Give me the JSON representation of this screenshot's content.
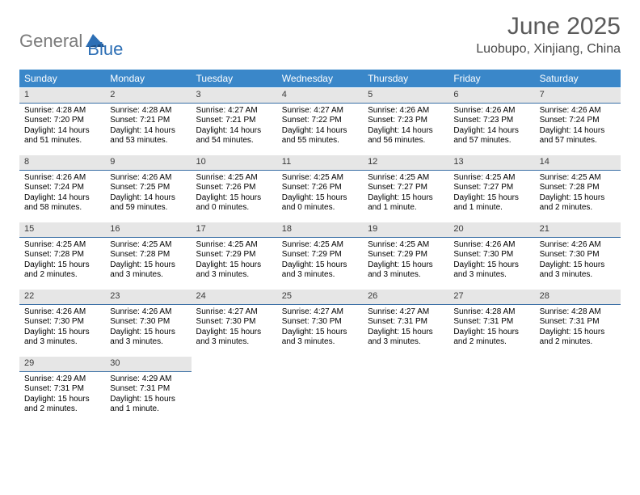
{
  "brand": {
    "text1": "General",
    "text2": "Blue",
    "color_gray": "#7a7a7a",
    "color_blue": "#2d6fb5"
  },
  "title": "June 2025",
  "location": "Luobupo, Xinjiang, China",
  "weekdays": [
    "Sunday",
    "Monday",
    "Tuesday",
    "Wednesday",
    "Thursday",
    "Friday",
    "Saturday"
  ],
  "header_bg": "#3a87c9",
  "daynum_bg": "#e6e6e6",
  "daynum_border": "#3a6fa5",
  "days": [
    {
      "n": "1",
      "sr": "Sunrise: 4:28 AM",
      "ss": "Sunset: 7:20 PM",
      "d1": "Daylight: 14 hours",
      "d2": "and 51 minutes."
    },
    {
      "n": "2",
      "sr": "Sunrise: 4:28 AM",
      "ss": "Sunset: 7:21 PM",
      "d1": "Daylight: 14 hours",
      "d2": "and 53 minutes."
    },
    {
      "n": "3",
      "sr": "Sunrise: 4:27 AM",
      "ss": "Sunset: 7:21 PM",
      "d1": "Daylight: 14 hours",
      "d2": "and 54 minutes."
    },
    {
      "n": "4",
      "sr": "Sunrise: 4:27 AM",
      "ss": "Sunset: 7:22 PM",
      "d1": "Daylight: 14 hours",
      "d2": "and 55 minutes."
    },
    {
      "n": "5",
      "sr": "Sunrise: 4:26 AM",
      "ss": "Sunset: 7:23 PM",
      "d1": "Daylight: 14 hours",
      "d2": "and 56 minutes."
    },
    {
      "n": "6",
      "sr": "Sunrise: 4:26 AM",
      "ss": "Sunset: 7:23 PM",
      "d1": "Daylight: 14 hours",
      "d2": "and 57 minutes."
    },
    {
      "n": "7",
      "sr": "Sunrise: 4:26 AM",
      "ss": "Sunset: 7:24 PM",
      "d1": "Daylight: 14 hours",
      "d2": "and 57 minutes."
    },
    {
      "n": "8",
      "sr": "Sunrise: 4:26 AM",
      "ss": "Sunset: 7:24 PM",
      "d1": "Daylight: 14 hours",
      "d2": "and 58 minutes."
    },
    {
      "n": "9",
      "sr": "Sunrise: 4:26 AM",
      "ss": "Sunset: 7:25 PM",
      "d1": "Daylight: 14 hours",
      "d2": "and 59 minutes."
    },
    {
      "n": "10",
      "sr": "Sunrise: 4:25 AM",
      "ss": "Sunset: 7:26 PM",
      "d1": "Daylight: 15 hours",
      "d2": "and 0 minutes."
    },
    {
      "n": "11",
      "sr": "Sunrise: 4:25 AM",
      "ss": "Sunset: 7:26 PM",
      "d1": "Daylight: 15 hours",
      "d2": "and 0 minutes."
    },
    {
      "n": "12",
      "sr": "Sunrise: 4:25 AM",
      "ss": "Sunset: 7:27 PM",
      "d1": "Daylight: 15 hours",
      "d2": "and 1 minute."
    },
    {
      "n": "13",
      "sr": "Sunrise: 4:25 AM",
      "ss": "Sunset: 7:27 PM",
      "d1": "Daylight: 15 hours",
      "d2": "and 1 minute."
    },
    {
      "n": "14",
      "sr": "Sunrise: 4:25 AM",
      "ss": "Sunset: 7:28 PM",
      "d1": "Daylight: 15 hours",
      "d2": "and 2 minutes."
    },
    {
      "n": "15",
      "sr": "Sunrise: 4:25 AM",
      "ss": "Sunset: 7:28 PM",
      "d1": "Daylight: 15 hours",
      "d2": "and 2 minutes."
    },
    {
      "n": "16",
      "sr": "Sunrise: 4:25 AM",
      "ss": "Sunset: 7:28 PM",
      "d1": "Daylight: 15 hours",
      "d2": "and 3 minutes."
    },
    {
      "n": "17",
      "sr": "Sunrise: 4:25 AM",
      "ss": "Sunset: 7:29 PM",
      "d1": "Daylight: 15 hours",
      "d2": "and 3 minutes."
    },
    {
      "n": "18",
      "sr": "Sunrise: 4:25 AM",
      "ss": "Sunset: 7:29 PM",
      "d1": "Daylight: 15 hours",
      "d2": "and 3 minutes."
    },
    {
      "n": "19",
      "sr": "Sunrise: 4:25 AM",
      "ss": "Sunset: 7:29 PM",
      "d1": "Daylight: 15 hours",
      "d2": "and 3 minutes."
    },
    {
      "n": "20",
      "sr": "Sunrise: 4:26 AM",
      "ss": "Sunset: 7:30 PM",
      "d1": "Daylight: 15 hours",
      "d2": "and 3 minutes."
    },
    {
      "n": "21",
      "sr": "Sunrise: 4:26 AM",
      "ss": "Sunset: 7:30 PM",
      "d1": "Daylight: 15 hours",
      "d2": "and 3 minutes."
    },
    {
      "n": "22",
      "sr": "Sunrise: 4:26 AM",
      "ss": "Sunset: 7:30 PM",
      "d1": "Daylight: 15 hours",
      "d2": "and 3 minutes."
    },
    {
      "n": "23",
      "sr": "Sunrise: 4:26 AM",
      "ss": "Sunset: 7:30 PM",
      "d1": "Daylight: 15 hours",
      "d2": "and 3 minutes."
    },
    {
      "n": "24",
      "sr": "Sunrise: 4:27 AM",
      "ss": "Sunset: 7:30 PM",
      "d1": "Daylight: 15 hours",
      "d2": "and 3 minutes."
    },
    {
      "n": "25",
      "sr": "Sunrise: 4:27 AM",
      "ss": "Sunset: 7:30 PM",
      "d1": "Daylight: 15 hours",
      "d2": "and 3 minutes."
    },
    {
      "n": "26",
      "sr": "Sunrise: 4:27 AM",
      "ss": "Sunset: 7:31 PM",
      "d1": "Daylight: 15 hours",
      "d2": "and 3 minutes."
    },
    {
      "n": "27",
      "sr": "Sunrise: 4:28 AM",
      "ss": "Sunset: 7:31 PM",
      "d1": "Daylight: 15 hours",
      "d2": "and 2 minutes."
    },
    {
      "n": "28",
      "sr": "Sunrise: 4:28 AM",
      "ss": "Sunset: 7:31 PM",
      "d1": "Daylight: 15 hours",
      "d2": "and 2 minutes."
    },
    {
      "n": "29",
      "sr": "Sunrise: 4:29 AM",
      "ss": "Sunset: 7:31 PM",
      "d1": "Daylight: 15 hours",
      "d2": "and 2 minutes."
    },
    {
      "n": "30",
      "sr": "Sunrise: 4:29 AM",
      "ss": "Sunset: 7:31 PM",
      "d1": "Daylight: 15 hours",
      "d2": "and 1 minute."
    }
  ]
}
